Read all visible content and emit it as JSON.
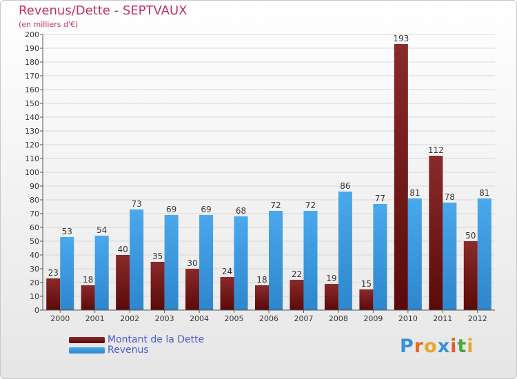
{
  "header": {
    "title": "Revenus/Dette - SEPTVAUX",
    "subtitle": "(en milliers d'€)"
  },
  "legend": [
    {
      "name": "Montant de la Dette",
      "color": "#7a1818"
    },
    {
      "name": "Revenus",
      "color": "#3d9ae0"
    }
  ],
  "logo": {
    "text": "Proxiti",
    "letters": [
      "P",
      "r",
      "o",
      "x",
      "i",
      "t",
      "i"
    ],
    "colors": [
      "#3a8fd8",
      "#e8682c",
      "#e8a62c",
      "#3a8fd8",
      "#e85a2c",
      "#48a848",
      "#e8a62c"
    ]
  },
  "chart_data": {
    "type": "bar",
    "title": "Revenus/Dette - SEPTVAUX",
    "subtitle": "(en milliers d'€)",
    "categories": [
      "2000",
      "2001",
      "2002",
      "2003",
      "2004",
      "2005",
      "2006",
      "2007",
      "2008",
      "2009",
      "2010",
      "2011",
      "2012"
    ],
    "series": [
      {
        "name": "Montant de la Dette",
        "color": "#7a1818",
        "values": [
          23,
          18,
          40,
          35,
          30,
          24,
          18,
          22,
          19,
          15,
          193,
          112,
          50
        ]
      },
      {
        "name": "Revenus",
        "color": "#3d9ae0",
        "values": [
          53,
          54,
          73,
          69,
          69,
          68,
          72,
          72,
          86,
          77,
          81,
          78,
          81
        ]
      }
    ],
    "ylim": [
      0,
      200
    ],
    "ytick_step": 10,
    "grid": true,
    "legend_position": "bottom-left"
  }
}
